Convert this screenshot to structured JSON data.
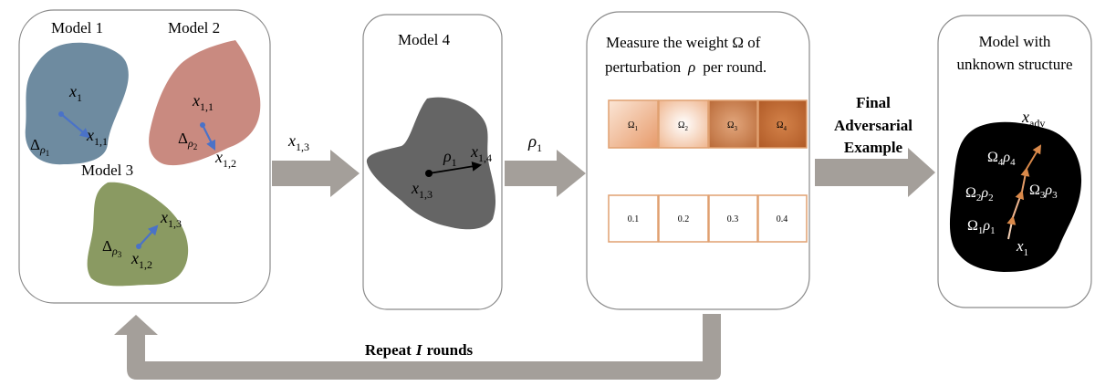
{
  "panel1": {
    "model1_title": "Model 1",
    "model2_title": "Model 2",
    "model3_title": "Model 3",
    "blob1": {
      "x_top": "x",
      "x_top_sub": "1",
      "x_end": "x",
      "x_end_sub": "1,1",
      "delta": "Δ",
      "delta_rho": "ρ",
      "delta_sub": "1"
    },
    "blob2": {
      "x_top": "x",
      "x_top_sub": "1,1",
      "x_end": "x",
      "x_end_sub": "1,2",
      "delta": "Δ",
      "delta_rho": "ρ",
      "delta_sub": "2"
    },
    "blob3": {
      "x_top": "x",
      "x_top_sub": "1,3",
      "x_end": "x",
      "x_end_sub": "1,2",
      "delta": "Δ",
      "delta_rho": "ρ",
      "delta_sub": "3"
    }
  },
  "arrow1": {
    "label": "x",
    "sub": "1,3"
  },
  "panel2": {
    "title": "Model 4",
    "rho": "ρ",
    "rho_sub": "1",
    "x_start": "x",
    "x_start_sub": "1,3",
    "x_end": "x",
    "x_end_sub": "1,4"
  },
  "arrow2": {
    "label": "ρ",
    "sub": "1"
  },
  "panel3": {
    "title_line1": "Measure the weight Ω of",
    "title_line2_a": "perturbation",
    "title_line2_rho": "ρ",
    "title_line2_b": "per round.",
    "weights": [
      {
        "label": "Ω",
        "sub": "1",
        "color": "#f3c8a8"
      },
      {
        "label": "Ω",
        "sub": "2",
        "color": "#f7dcc6"
      },
      {
        "label": "Ω",
        "sub": "3",
        "color": "#c97e4b"
      },
      {
        "label": "Ω",
        "sub": "4",
        "color": "#c0682f"
      }
    ],
    "values": [
      "0.1",
      "0.2",
      "0.3",
      "0.4"
    ]
  },
  "arrow3": {
    "line1": "Final",
    "line2": "Adversarial",
    "line3": "Example"
  },
  "panel4": {
    "title_line1": "Model with",
    "title_line2": "unknown structure",
    "x_adv": "x",
    "x_adv_sub": "adv",
    "x1": "x",
    "x1_sub": "1",
    "steps": [
      {
        "omega": "Ω",
        "os": "1",
        "rho": "ρ",
        "rs": "1"
      },
      {
        "omega": "Ω",
        "os": "2",
        "rho": "ρ",
        "rs": "2"
      },
      {
        "omega": "Ω",
        "os": "3",
        "rho": "ρ",
        "rs": "3"
      },
      {
        "omega": "Ω",
        "os": "4",
        "rho": "ρ",
        "rs": "4"
      }
    ]
  },
  "loop": {
    "label_a": "Repeat",
    "label_i": "I",
    "label_b": "rounds"
  },
  "colors": {
    "blob1": "#6e8ba0",
    "blob2": "#c98a80",
    "blob3": "#8a9a62",
    "blob4": "#656565",
    "blob5": "#000000",
    "arrow_gray": "#a49f9a",
    "perturb_blue": "#4a72c8",
    "path_orange": "#d9894a",
    "table_border": "#e0a070"
  }
}
